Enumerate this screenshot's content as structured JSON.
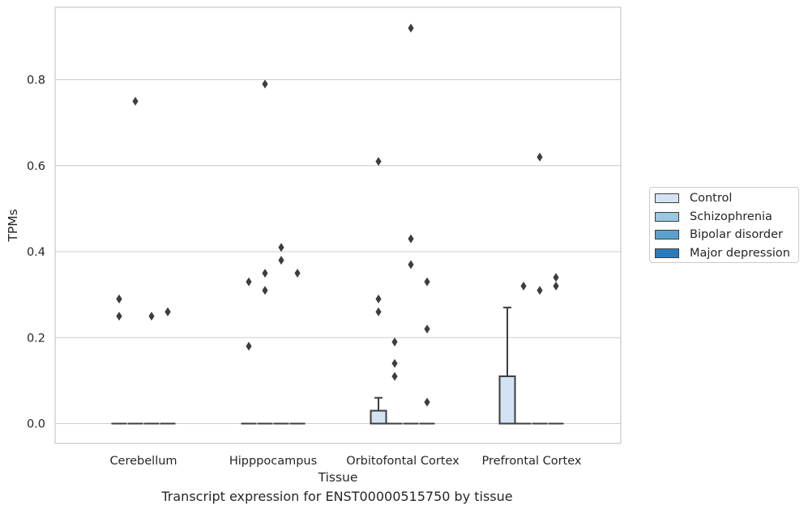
{
  "chart_data": {
    "type": "box",
    "title": "",
    "caption": "Transcript expression for ENST00000515750 by tissue",
    "xlabel": "Tissue",
    "ylabel": "TPMs",
    "ylim": [
      -0.045,
      0.965
    ],
    "yticks": [
      "0.0",
      "0.2",
      "0.4",
      "0.6",
      "0.8"
    ],
    "ytick_values": [
      0.0,
      0.2,
      0.4,
      0.6,
      0.8
    ],
    "grid": true,
    "legend_position": "right",
    "categories": [
      "Cerebellum",
      "Hipppocampus",
      "Orbitofontal Cortex",
      "Prefrontal Cortex"
    ],
    "series": [
      {
        "name": "Control",
        "color": "#d3e3f3",
        "boxes": [
          {
            "q1": 0,
            "median": 0,
            "q3": 0,
            "whisker_low": 0,
            "whisker_high": 0,
            "outliers": [
              0.29,
              0.29,
              0.25
            ]
          },
          {
            "q1": 0,
            "median": 0,
            "q3": 0,
            "whisker_low": 0,
            "whisker_high": 0,
            "outliers": [
              0.33,
              0.18
            ]
          },
          {
            "q1": 0,
            "median": 0,
            "q3": 0.03,
            "whisker_low": 0,
            "whisker_high": 0.06,
            "outliers": [
              0.61,
              0.29,
              0.26
            ]
          },
          {
            "q1": 0,
            "median": 0,
            "q3": 0.11,
            "whisker_low": 0,
            "whisker_high": 0.27,
            "outliers": []
          }
        ]
      },
      {
        "name": "Schizophrenia",
        "color": "#9ac8e0",
        "boxes": [
          {
            "q1": 0,
            "median": 0,
            "q3": 0,
            "whisker_low": 0,
            "whisker_high": 0,
            "outliers": [
              0.75
            ]
          },
          {
            "q1": 0,
            "median": 0,
            "q3": 0,
            "whisker_low": 0,
            "whisker_high": 0,
            "outliers": [
              0.79,
              0.35,
              0.31
            ]
          },
          {
            "q1": 0,
            "median": 0,
            "q3": 0,
            "whisker_low": 0,
            "whisker_high": 0,
            "outliers": [
              0.19,
              0.14,
              0.11
            ]
          },
          {
            "q1": 0,
            "median": 0,
            "q3": 0,
            "whisker_low": 0,
            "whisker_high": 0,
            "outliers": [
              0.32
            ]
          }
        ]
      },
      {
        "name": "Bipolar disorder",
        "color": "#5aa1cf",
        "boxes": [
          {
            "q1": 0,
            "median": 0,
            "q3": 0,
            "whisker_low": 0,
            "whisker_high": 0,
            "outliers": [
              0.25
            ]
          },
          {
            "q1": 0,
            "median": 0,
            "q3": 0,
            "whisker_low": 0,
            "whisker_high": 0,
            "outliers": [
              0.41,
              0.38
            ]
          },
          {
            "q1": 0,
            "median": 0,
            "q3": 0,
            "whisker_low": 0,
            "whisker_high": 0,
            "outliers": [
              0.92,
              0.43,
              0.37
            ]
          },
          {
            "q1": 0,
            "median": 0,
            "q3": 0,
            "whisker_low": 0,
            "whisker_high": 0,
            "outliers": [
              0.62,
              0.31
            ]
          }
        ]
      },
      {
        "name": "Major depression",
        "color": "#2b7bba",
        "boxes": [
          {
            "q1": 0,
            "median": 0,
            "q3": 0,
            "whisker_low": 0,
            "whisker_high": 0,
            "outliers": [
              0.26,
              0.26
            ]
          },
          {
            "q1": 0,
            "median": 0,
            "q3": 0,
            "whisker_low": 0,
            "whisker_high": 0,
            "outliers": [
              0.35
            ]
          },
          {
            "q1": 0,
            "median": 0,
            "q3": 0,
            "whisker_low": 0,
            "whisker_high": 0,
            "outliers": [
              0.33,
              0.22,
              0.05
            ]
          },
          {
            "q1": 0,
            "median": 0,
            "q3": 0,
            "whisker_low": 0,
            "whisker_high": 0,
            "outliers": [
              0.34,
              0.32
            ]
          }
        ]
      }
    ]
  }
}
